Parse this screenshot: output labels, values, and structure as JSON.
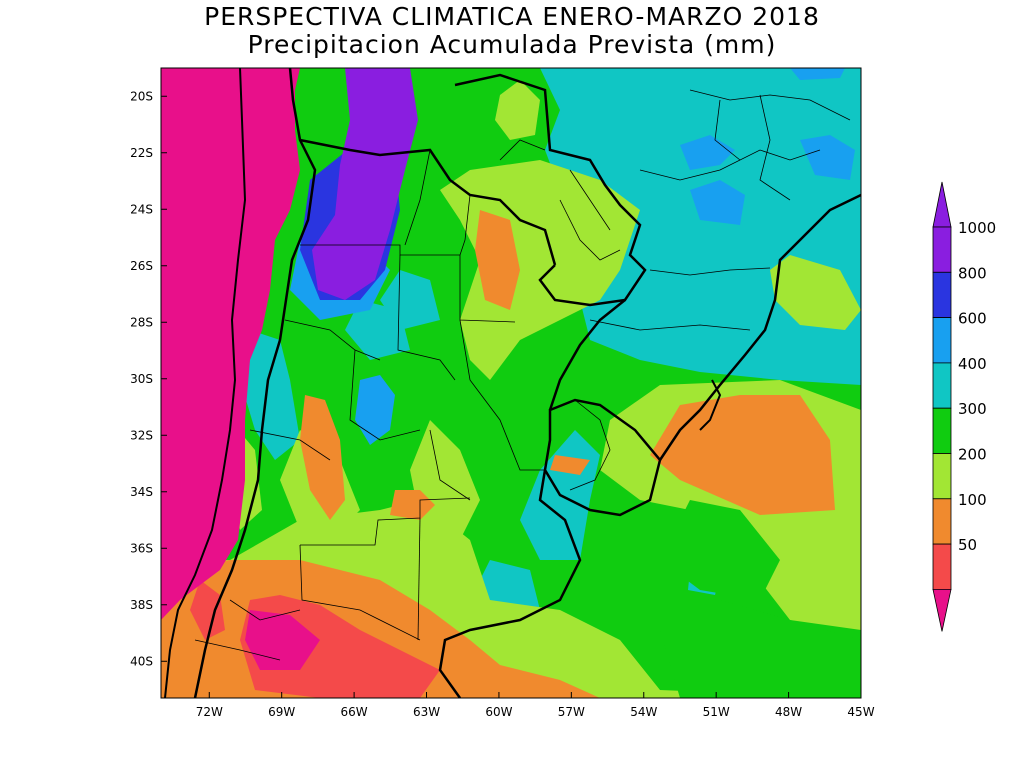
{
  "title": {
    "line1": "PERSPECTIVA CLIMATICA ENERO-MARZO 2018",
    "line2": "Precipitacion Acumulada Prevista (mm)"
  },
  "map": {
    "lat_labels": [
      "20S",
      "22S",
      "24S",
      "26S",
      "28S",
      "30S",
      "32S",
      "34S",
      "36S",
      "38S",
      "40S"
    ],
    "lon_labels": [
      "72W",
      "69W",
      "66W",
      "63W",
      "60W",
      "57W",
      "54W",
      "51W",
      "48W",
      "45W"
    ],
    "lat_range": [
      -41.3,
      -19.0
    ],
    "lon_range": [
      -74.0,
      -45.0
    ]
  },
  "legend": {
    "levels": [
      {
        "value": "1000",
        "color": "#8a1ee0"
      },
      {
        "value": "800",
        "color": "#2a35e0"
      },
      {
        "value": "600",
        "color": "#18a0f0"
      },
      {
        "value": "400",
        "color": "#10c6c4"
      },
      {
        "value": "300",
        "color": "#10cc10"
      },
      {
        "value": "200",
        "color": "#a2e634"
      },
      {
        "value": "100",
        "color": "#f08a2e"
      },
      {
        "value": "50",
        "color": "#f44a4a"
      }
    ],
    "below_color": "#e8108a",
    "above_color": "#8a1ee0"
  }
}
